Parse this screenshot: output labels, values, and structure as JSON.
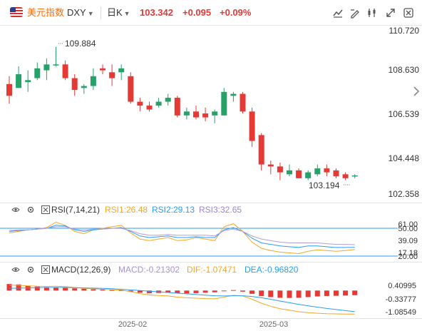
{
  "header": {
    "symbol_name": "美元指数",
    "symbol_code": "DXY",
    "period": "日K",
    "price": "103.342",
    "change": "+0.095",
    "change_pct": "+0.09%",
    "icons": [
      "indicator-icon",
      "draw-icon",
      "compare-icon",
      "fullscreen-icon",
      "settings-icon"
    ]
  },
  "colors": {
    "up": "#e53935",
    "down": "#26a269",
    "accent": "#ff6d00",
    "rsi1": "#f5a623",
    "rsi2": "#2a9df4",
    "rsi3": "#b39ddb",
    "macd": "#a98fd6",
    "dif": "#f5a623",
    "dea": "#2a9df4"
  },
  "price_axis": [
    "110.720",
    "108.630",
    "106.539",
    "104.448",
    "102.358"
  ],
  "annotations": {
    "high": "109.884",
    "low": "103.194"
  },
  "rsi": {
    "name": "RSI(7,14,21)",
    "rsi1": "RSI1:26.48",
    "rsi2": "RSI2:29.13",
    "rsi3": "RSI3:32.65",
    "axis": [
      "61.00",
      "50.00",
      "39.09",
      "20.00",
      "17.18"
    ]
  },
  "macd": {
    "name": "MACD(12,26,9)",
    "macd": "MACD:-0.21302",
    "dif": "DIF:-1.07471",
    "dea": "DEA:-0.96820",
    "axis": [
      "0.40995",
      "-0.33777",
      "-1.08549"
    ]
  },
  "date_axis": [
    "2025-02",
    "2025-03"
  ],
  "chart_data": [
    {
      "type": "candlestick",
      "title": "",
      "ylim": [
        102.358,
        110.72
      ],
      "candles": [
        {
          "o": 108.0,
          "h": 108.4,
          "l": 107.0,
          "c": 107.4
        },
        {
          "o": 107.8,
          "h": 108.9,
          "l": 107.8,
          "c": 108.5
        },
        {
          "o": 108.1,
          "h": 108.7,
          "l": 107.6,
          "c": 108.2
        },
        {
          "o": 108.3,
          "h": 109.1,
          "l": 108.2,
          "c": 108.8
        },
        {
          "o": 108.7,
          "h": 109.3,
          "l": 108.2,
          "c": 109.0
        },
        {
          "o": 109.0,
          "h": 109.884,
          "l": 108.9,
          "c": 109.0
        },
        {
          "o": 109.0,
          "h": 109.2,
          "l": 108.2,
          "c": 108.3
        },
        {
          "o": 108.3,
          "h": 108.5,
          "l": 107.4,
          "c": 107.7
        },
        {
          "o": 107.8,
          "h": 108.0,
          "l": 107.5,
          "c": 107.9
        },
        {
          "o": 107.9,
          "h": 108.8,
          "l": 107.7,
          "c": 108.4
        },
        {
          "o": 108.8,
          "h": 109.0,
          "l": 108.5,
          "c": 108.7
        },
        {
          "o": 108.6,
          "h": 109.0,
          "l": 107.9,
          "c": 108.3
        },
        {
          "o": 108.6,
          "h": 109.0,
          "l": 108.2,
          "c": 108.8
        },
        {
          "o": 108.4,
          "h": 108.6,
          "l": 107.0,
          "c": 107.1
        },
        {
          "o": 107.1,
          "h": 107.3,
          "l": 106.6,
          "c": 106.9
        },
        {
          "o": 106.9,
          "h": 107.1,
          "l": 106.6,
          "c": 106.7
        },
        {
          "o": 106.9,
          "h": 107.3,
          "l": 106.8,
          "c": 107.1
        },
        {
          "o": 107.1,
          "h": 107.5,
          "l": 106.9,
          "c": 107.3
        },
        {
          "o": 107.3,
          "h": 107.4,
          "l": 106.3,
          "c": 106.4
        },
        {
          "o": 106.4,
          "h": 106.8,
          "l": 106.2,
          "c": 106.6
        },
        {
          "o": 106.6,
          "h": 106.9,
          "l": 106.2,
          "c": 106.3
        },
        {
          "o": 106.5,
          "h": 106.8,
          "l": 106.1,
          "c": 106.3
        },
        {
          "o": 106.4,
          "h": 106.7,
          "l": 106.0,
          "c": 106.6
        },
        {
          "o": 106.4,
          "h": 107.8,
          "l": 106.4,
          "c": 107.6
        },
        {
          "o": 107.4,
          "h": 107.6,
          "l": 107.1,
          "c": 107.5
        },
        {
          "o": 107.5,
          "h": 107.6,
          "l": 106.5,
          "c": 106.6
        },
        {
          "o": 106.6,
          "h": 106.8,
          "l": 104.8,
          "c": 105.1
        },
        {
          "o": 105.4,
          "h": 105.5,
          "l": 103.6,
          "c": 103.9
        },
        {
          "o": 103.9,
          "h": 104.1,
          "l": 103.4,
          "c": 103.8
        },
        {
          "o": 103.8,
          "h": 104.0,
          "l": 103.1,
          "c": 103.5
        },
        {
          "o": 103.4,
          "h": 103.9,
          "l": 103.3,
          "c": 103.6
        },
        {
          "o": 103.6,
          "h": 103.7,
          "l": 103.194,
          "c": 103.2
        },
        {
          "o": 103.2,
          "h": 103.6,
          "l": 103.1,
          "c": 103.5
        },
        {
          "o": 103.4,
          "h": 103.9,
          "l": 103.3,
          "c": 103.7
        },
        {
          "o": 103.7,
          "h": 103.9,
          "l": 103.3,
          "c": 103.5
        },
        {
          "o": 103.6,
          "h": 103.7,
          "l": 103.2,
          "c": 103.3
        },
        {
          "o": 103.4,
          "h": 103.5,
          "l": 103.1,
          "c": 103.2
        },
        {
          "o": 103.3,
          "h": 103.4,
          "l": 103.2,
          "c": 103.342
        }
      ]
    },
    {
      "type": "line",
      "title": "RSI(7,14,21)",
      "ylim": [
        15,
        68
      ],
      "series": [
        {
          "name": "RSI1",
          "values": [
            48,
            50,
            52,
            53,
            55,
            62,
            58,
            50,
            47,
            52,
            54,
            56,
            58,
            48,
            40,
            38,
            40,
            42,
            38,
            39,
            42,
            40,
            38,
            56,
            60,
            50,
            36,
            28,
            25,
            23,
            22,
            21,
            24,
            26,
            25,
            24,
            25,
            26.48
          ]
        },
        {
          "name": "RSI2",
          "values": [
            50,
            51,
            52,
            53,
            54,
            58,
            57,
            52,
            50,
            52,
            53,
            54,
            55,
            50,
            44,
            42,
            43,
            44,
            42,
            42,
            43,
            42,
            42,
            52,
            55,
            50,
            41,
            35,
            33,
            31,
            30,
            29,
            31,
            31,
            30,
            29,
            29,
            29.13
          ]
        },
        {
          "name": "RSI3",
          "values": [
            51,
            52,
            52,
            53,
            54,
            56,
            56,
            53,
            52,
            53,
            53,
            54,
            54,
            51,
            47,
            45,
            45,
            46,
            45,
            45,
            45,
            45,
            44,
            51,
            53,
            50,
            44,
            40,
            38,
            36,
            35,
            35,
            35,
            35,
            34,
            33,
            33,
            32.65
          ]
        }
      ]
    },
    {
      "type": "bar",
      "title": "MACD(12,26,9)",
      "ylim": [
        -1.2,
        0.5
      ],
      "series": [
        {
          "name": "MACD",
          "values": [
            0.3,
            0.28,
            0.22,
            0.18,
            0.16,
            0.14,
            0.12,
            0.1,
            0.08,
            0.06,
            0.04,
            0.02,
            0.01,
            -0.05,
            -0.1,
            -0.12,
            -0.11,
            -0.1,
            -0.12,
            -0.13,
            -0.12,
            -0.1,
            -0.08,
            0.0,
            0.02,
            -0.05,
            -0.15,
            -0.25,
            -0.3,
            -0.33,
            -0.34,
            -0.33,
            -0.3,
            -0.27,
            -0.25,
            -0.24,
            -0.23,
            -0.21302
          ]
        },
        {
          "name": "DIF",
          "values": [
            0.25,
            0.24,
            0.22,
            0.2,
            0.19,
            0.2,
            0.18,
            0.14,
            0.1,
            0.08,
            0.06,
            0.04,
            0.02,
            -0.05,
            -0.14,
            -0.2,
            -0.23,
            -0.25,
            -0.3,
            -0.33,
            -0.35,
            -0.37,
            -0.38,
            -0.3,
            -0.22,
            -0.25,
            -0.4,
            -0.58,
            -0.72,
            -0.83,
            -0.9,
            -0.97,
            -1.01,
            -1.04,
            -1.06,
            -1.07,
            -1.075,
            -1.07471
          ]
        },
        {
          "name": "DEA",
          "values": [
            0.1,
            0.11,
            0.12,
            0.13,
            0.14,
            0.14,
            0.14,
            0.13,
            0.12,
            0.11,
            0.1,
            0.08,
            0.06,
            0.03,
            0.0,
            -0.03,
            -0.06,
            -0.09,
            -0.12,
            -0.15,
            -0.18,
            -0.21,
            -0.24,
            -0.25,
            -0.24,
            -0.24,
            -0.27,
            -0.33,
            -0.4,
            -0.48,
            -0.56,
            -0.63,
            -0.7,
            -0.76,
            -0.82,
            -0.87,
            -0.92,
            -0.9682
          ]
        }
      ]
    }
  ]
}
